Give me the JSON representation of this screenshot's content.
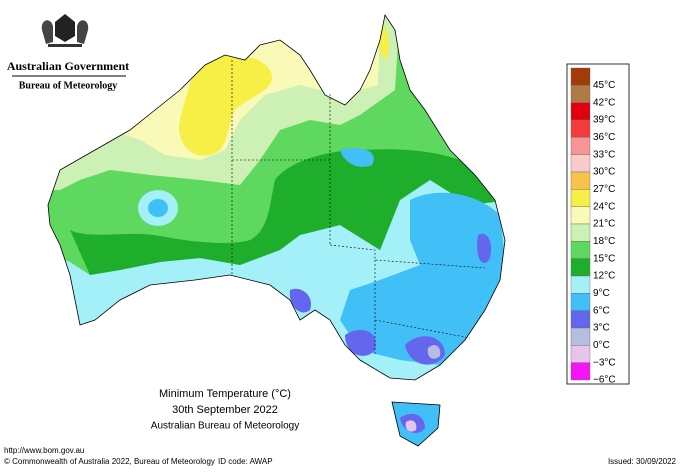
{
  "header": {
    "government": "Australian Government",
    "agency": "Bureau of Meteorology"
  },
  "map": {
    "title": "Minimum Temperature (°C)",
    "date": "30th September 2022",
    "source": "Australian Bureau of Meteorology"
  },
  "legend": [
    {
      "label": "45°C",
      "color": "#a33a0a"
    },
    {
      "label": "42°C",
      "color": "#b07a44"
    },
    {
      "label": "39°C",
      "color": "#e00010"
    },
    {
      "label": "36°C",
      "color": "#f53c3c"
    },
    {
      "label": "33°C",
      "color": "#f79494"
    },
    {
      "label": "30°C",
      "color": "#f9cbcb"
    },
    {
      "label": "27°C",
      "color": "#f9c24a"
    },
    {
      "label": "24°C",
      "color": "#f7ee46"
    },
    {
      "label": "21°C",
      "color": "#f9f9b8"
    },
    {
      "label": "18°C",
      "color": "#cdf0b4"
    },
    {
      "label": "15°C",
      "color": "#5ed85e"
    },
    {
      "label": "12°C",
      "color": "#1fae2c"
    },
    {
      "label": "9°C",
      "color": "#a4f0f8"
    },
    {
      "label": "6°C",
      "color": "#40c0f6"
    },
    {
      "label": "3°C",
      "color": "#6466ee"
    },
    {
      "label": "0°C",
      "color": "#b6bce2"
    },
    {
      "label": "−3°C",
      "color": "#e8c4ea"
    },
    {
      "label": "−6°C",
      "color": "#f414f4"
    }
  ],
  "footer": {
    "url": "http://www.bom.gov.au",
    "copyright": "© Commonwealth of Australia 2022, Bureau of Meteorology",
    "id_code": "ID code: AWAP",
    "issued": "Issued: 30/09/2022"
  }
}
